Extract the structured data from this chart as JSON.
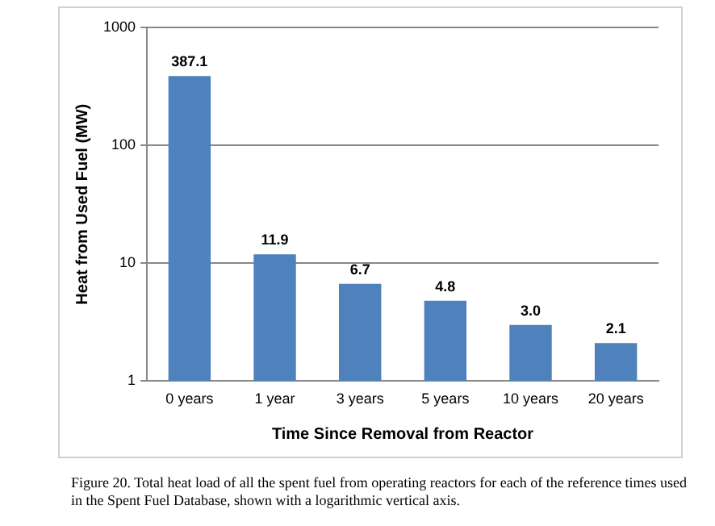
{
  "chart_data": {
    "type": "bar",
    "xlabel": "Time Since Removal from Reactor",
    "ylabel": "Heat from Used Fuel (MW)",
    "categories": [
      "0 years",
      "1 year",
      "3 years",
      "5 years",
      "10 years",
      "20 years"
    ],
    "values": [
      387.1,
      11.9,
      6.7,
      4.8,
      3.0,
      2.1
    ],
    "value_labels": [
      "387.1",
      "11.9",
      "6.7",
      "4.8",
      "3.0",
      "2.1"
    ],
    "color": "#4f81bd",
    "log": "y",
    "ylim": [
      1,
      1000
    ],
    "yticks": [
      1,
      10,
      100,
      1000
    ],
    "grid": "y",
    "legend": false,
    "annotations": [
      "Figure 20. Total heat load of all the spent fuel from operating reactors for each of the reference times used in the Spent Fuel Database, shown with a logarithmic vertical axis."
    ]
  }
}
